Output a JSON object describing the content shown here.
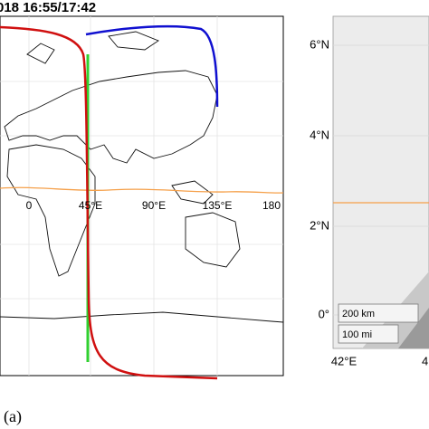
{
  "left_map": {
    "title": "018 16:55/17:42",
    "lon_labels": [
      "0",
      "45°E",
      "90°E",
      "135°E",
      "180"
    ]
  },
  "right_map": {
    "lat_labels": [
      "6°N",
      "4°N",
      "2°N",
      "0°"
    ],
    "lon_labels": [
      "42°E",
      "4"
    ],
    "scale_km": "200 km",
    "scale_mi": "100 mi"
  },
  "caption": "(a)"
}
